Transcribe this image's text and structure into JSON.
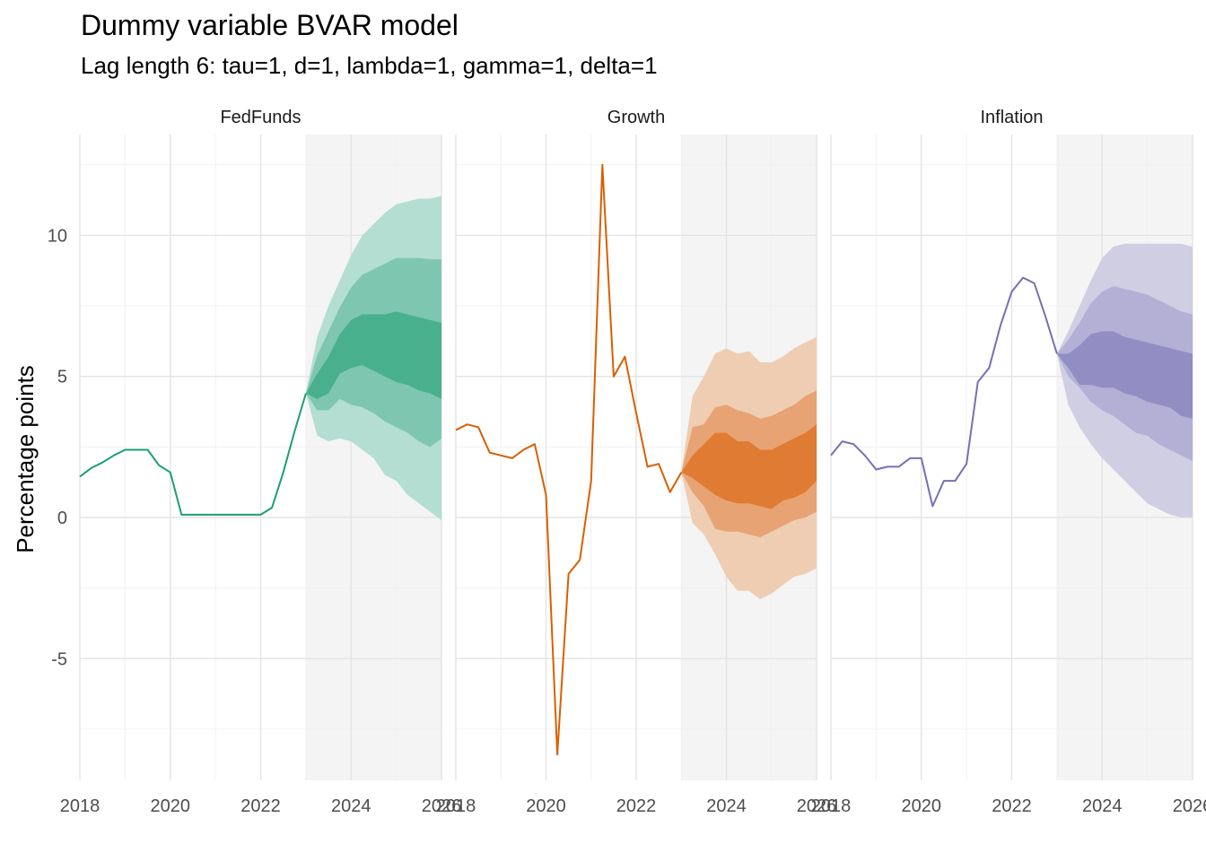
{
  "title": "Dummy variable BVAR model",
  "subtitle": "Lag length 6: tau=1, d=1, lambda=1, gamma=1, delta=1",
  "chart_data": {
    "type": "line",
    "title": "Dummy variable BVAR model",
    "subtitle": "Lag length 6: tau=1, d=1, lambda=1, gamma=1, delta=1",
    "xlabel": "",
    "ylabel": "Percentage points",
    "xlim": [
      2018,
      2026
    ],
    "ylim": [
      -9.3,
      13.5
    ],
    "x_ticks": [
      2018,
      2020,
      2022,
      2024,
      2026
    ],
    "x_tick_labels": [
      "2018",
      "2020",
      "2022",
      "2024",
      "2026"
    ],
    "y_ticks": [
      -5,
      0,
      5,
      10
    ],
    "y_tick_labels": [
      "-5",
      "0",
      "5",
      "10"
    ],
    "forecast_start": 2023,
    "grid": true,
    "facets": [
      {
        "name": "FedFunds",
        "color": "#1b9e77",
        "band_colors": [
          "#b3ded1",
          "#7fc6b0",
          "#49b08e"
        ],
        "history": {
          "x": [
            2018,
            2018.25,
            2018.5,
            2018.75,
            2019,
            2019.25,
            2019.5,
            2019.75,
            2020,
            2020.25,
            2020.5,
            2020.75,
            2021,
            2021.25,
            2021.5,
            2021.75,
            2022,
            2022.25,
            2022.5,
            2022.75,
            2023
          ],
          "values": [
            1.45,
            1.75,
            1.95,
            2.2,
            2.4,
            2.4,
            2.4,
            1.85,
            1.6,
            0.1,
            0.1,
            0.1,
            0.1,
            0.1,
            0.1,
            0.1,
            0.1,
            0.35,
            1.6,
            3.05,
            4.4
          ]
        },
        "forecast_x": [
          2023,
          2023.25,
          2023.5,
          2023.75,
          2024,
          2024.25,
          2024.5,
          2024.75,
          2025,
          2025.25,
          2025.5,
          2025.75,
          2026
        ],
        "bands": [
          {
            "lower": [
              4.4,
              2.9,
              2.7,
              2.8,
              2.7,
              2.4,
              2.1,
              1.5,
              1.3,
              0.8,
              0.5,
              0.2,
              -0.1
            ],
            "upper": [
              4.4,
              6.4,
              7.5,
              8.4,
              9.3,
              10.0,
              10.4,
              10.8,
              11.1,
              11.2,
              11.3,
              11.3,
              11.4
            ]
          },
          {
            "lower": [
              4.4,
              3.8,
              3.8,
              4.2,
              4.0,
              3.9,
              3.7,
              3.4,
              3.2,
              3.0,
              2.7,
              2.5,
              2.8
            ]
          },
          {
            "lower": [
              4.4,
              4.2,
              4.4,
              5.1,
              5.3,
              5.4,
              5.2,
              5.0,
              4.8,
              4.7,
              4.5,
              4.4,
              4.2
            ],
            "upper": [
              4.4,
              5.1,
              5.7,
              6.5,
              7.0,
              7.2,
              7.2,
              7.2,
              7.3,
              7.2,
              7.1,
              7.0,
              6.9
            ]
          }
        ]
      },
      {
        "name": "Growth",
        "color": "#d95f02",
        "band_colors": [
          "#efcdb3",
          "#e7a373",
          "#e07b34"
        ],
        "history": {
          "x": [
            2018,
            2018.25,
            2018.5,
            2018.75,
            2019,
            2019.25,
            2019.5,
            2019.75,
            2020,
            2020.25,
            2020.5,
            2020.75,
            2021,
            2021.25,
            2021.5,
            2021.75,
            2022,
            2022.25,
            2022.5,
            2022.75,
            2023
          ],
          "values": [
            3.1,
            3.3,
            3.2,
            2.3,
            2.2,
            2.1,
            2.4,
            2.6,
            0.8,
            -8.4,
            -2.0,
            -1.5,
            1.3,
            12.5,
            5.0,
            5.7,
            3.7,
            1.8,
            1.9,
            0.9,
            1.6
          ]
        },
        "forecast_x": [
          2023,
          2023.25,
          2023.5,
          2023.75,
          2024,
          2024.25,
          2024.5,
          2024.75,
          2025,
          2025.25,
          2025.5,
          2025.75,
          2026
        ],
        "bands": [
          {
            "lower": [
              1.6,
              -0.2,
              -0.6,
              -1.3,
              -2.1,
              -2.6,
              -2.6,
              -2.9,
              -2.7,
              -2.4,
              -2.1,
              -2.0,
              -1.8
            ],
            "upper": [
              1.6,
              4.3,
              5.0,
              5.8,
              6.0,
              5.8,
              5.9,
              5.5,
              5.5,
              5.7,
              6.0,
              6.2,
              6.4
            ]
          },
          {
            "lower": [
              1.6,
              0.9,
              0.4,
              -0.4,
              -0.5,
              -0.5,
              -0.6,
              -0.7,
              -0.5,
              -0.3,
              -0.1,
              0.0,
              0.2
            ],
            "upper": [
              1.6,
              3.2,
              3.3,
              3.9,
              4.0,
              3.8,
              3.7,
              3.5,
              3.6,
              3.8,
              4.0,
              4.3,
              4.5
            ]
          },
          {
            "lower": [
              1.6,
              1.4,
              1.1,
              0.8,
              0.6,
              0.5,
              0.5,
              0.4,
              0.3,
              0.6,
              0.7,
              0.9,
              1.3
            ],
            "upper": [
              1.6,
              2.2,
              2.6,
              3.0,
              3.0,
              2.7,
              2.7,
              2.4,
              2.4,
              2.6,
              2.8,
              3.0,
              3.3
            ]
          }
        ]
      },
      {
        "name": "Inflation",
        "color": "#7570b3",
        "band_colors": [
          "#d0cee3",
          "#b3afd5",
          "#928dc2"
        ],
        "history": {
          "x": [
            2018,
            2018.25,
            2018.5,
            2018.75,
            2019,
            2019.25,
            2019.5,
            2019.75,
            2020,
            2020.25,
            2020.5,
            2020.75,
            2021,
            2021.25,
            2021.5,
            2021.75,
            2022,
            2022.25,
            2022.5,
            2022.75,
            2023
          ],
          "values": [
            2.2,
            2.7,
            2.6,
            2.2,
            1.7,
            1.8,
            1.8,
            2.1,
            2.1,
            0.4,
            1.3,
            1.3,
            1.9,
            4.8,
            5.3,
            6.8,
            8.0,
            8.5,
            8.3,
            7.1,
            5.8
          ]
        },
        "forecast_x": [
          2023,
          2023.25,
          2023.5,
          2023.75,
          2024,
          2024.25,
          2024.5,
          2024.75,
          2025,
          2025.25,
          2025.5,
          2025.75,
          2026
        ],
        "bands": [
          {
            "lower": [
              5.8,
              4.0,
              3.2,
              2.6,
              2.1,
              1.7,
              1.3,
              0.9,
              0.5,
              0.3,
              0.1,
              0.0,
              0.0
            ],
            "upper": [
              5.8,
              6.6,
              7.5,
              8.4,
              9.2,
              9.6,
              9.7,
              9.7,
              9.7,
              9.7,
              9.7,
              9.7,
              9.6
            ]
          },
          {
            "lower": [
              5.8,
              5.0,
              4.6,
              4.1,
              3.8,
              3.6,
              3.3,
              3.0,
              2.9,
              2.6,
              2.4,
              2.2,
              2.0
            ],
            "upper": [
              5.8,
              6.3,
              6.9,
              7.6,
              8.0,
              8.2,
              8.1,
              8.0,
              7.9,
              7.7,
              7.5,
              7.3,
              7.2
            ]
          },
          {
            "lower": [
              5.8,
              5.3,
              4.7,
              4.7,
              4.6,
              4.6,
              4.4,
              4.3,
              4.1,
              4.0,
              3.9,
              3.6,
              3.5
            ],
            "upper": [
              5.8,
              5.8,
              6.1,
              6.5,
              6.6,
              6.6,
              6.4,
              6.3,
              6.2,
              6.1,
              6.0,
              5.9,
              5.8
            ]
          }
        ]
      }
    ]
  }
}
